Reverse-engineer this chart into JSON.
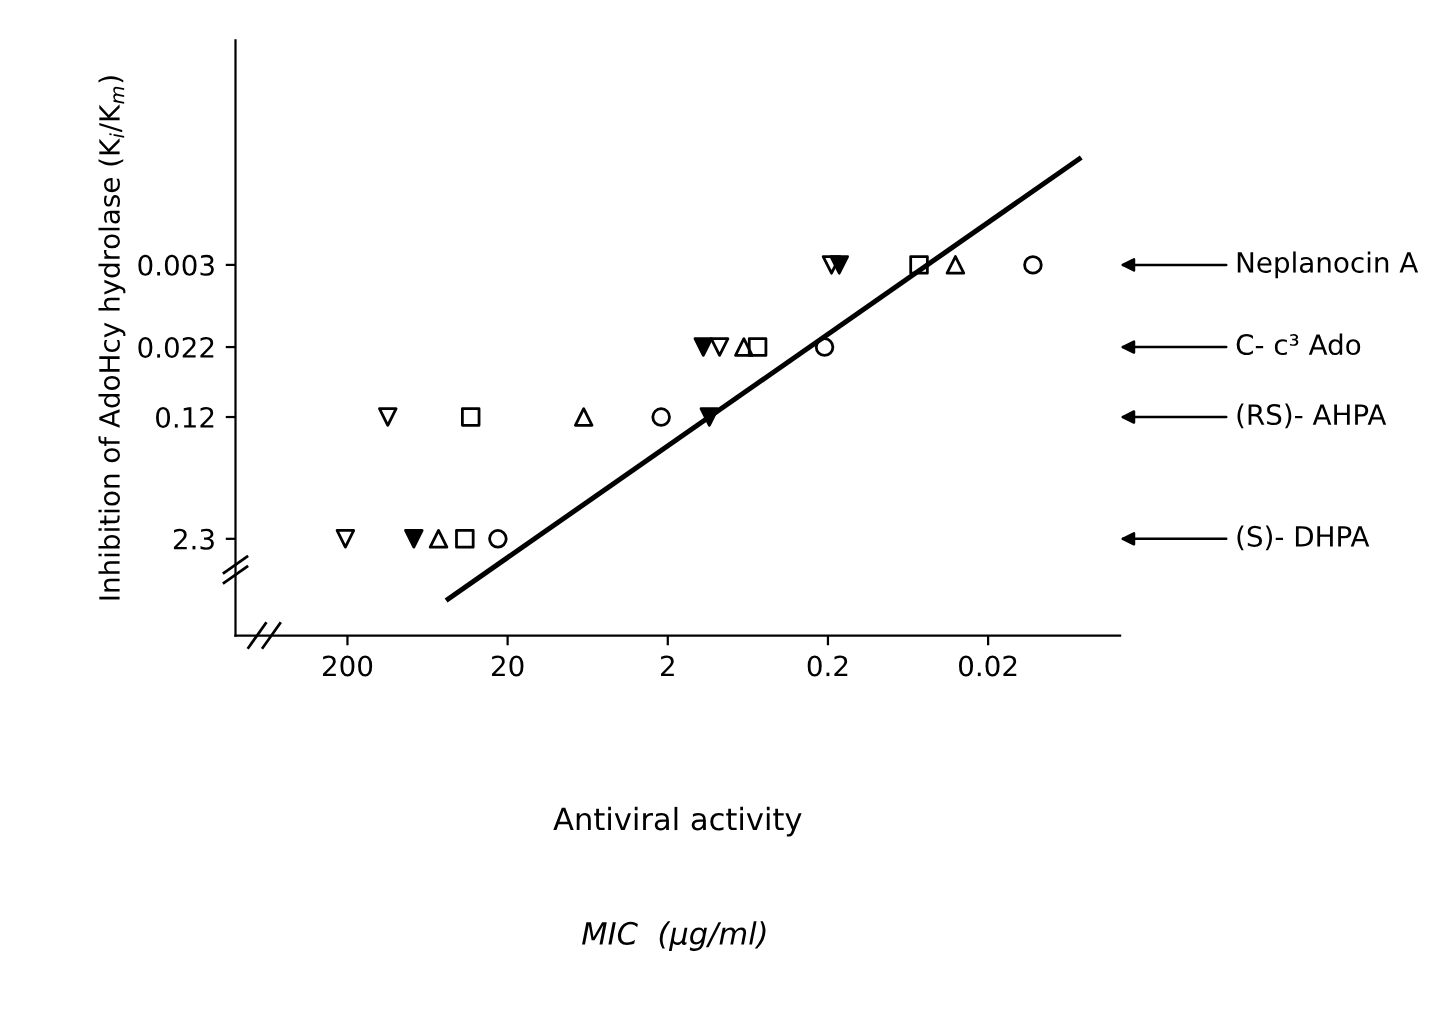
{
  "chart_data": {
    "type": "scatter",
    "xlabel": "Antiviral activity",
    "ylabel": "Inhibition of AdoHcy hydrolase (K$_{i}$/K$_{m}$)",
    "log": "xy",
    "xlim": [
      1000,
      0.003
    ],
    "ylim": [
      24,
      1.3e-05
    ],
    "xticks": [
      200,
      20,
      2,
      0.2,
      0.02
    ],
    "yticks": [
      0.003,
      0.022,
      0.12,
      2.3
    ],
    "grid": false,
    "series": [
      {
        "color": "#000000",
        "marker": "triangle_down",
        "x": [
          0.19,
          0.95,
          112,
          206
        ],
        "values": [
          0.003,
          0.022,
          0.12,
          2.3
        ]
      },
      {
        "color": "#000000",
        "marker": "triangle_down_filled",
        "x": [
          0.17,
          1.2,
          1.1,
          77
        ],
        "values": [
          0.003,
          0.022,
          0.12,
          2.3
        ]
      },
      {
        "color": "#000000",
        "marker": "triangle",
        "x": [
          0.032,
          0.67,
          6.7,
          54
        ],
        "values": [
          0.003,
          0.022,
          0.12,
          2.3
        ]
      },
      {
        "color": "#000000",
        "marker": "square",
        "x": [
          0.054,
          0.55,
          34,
          37
        ],
        "values": [
          0.003,
          0.022,
          0.12,
          2.3
        ]
      },
      {
        "color": "#000000",
        "marker": "circle",
        "x": [
          0.0105,
          0.21,
          2.2,
          23
        ],
        "values": [
          0.003,
          0.022,
          0.12,
          2.3
        ]
      },
      {
        "type": "line",
        "color": "#000000",
        "marker": "none",
        "x": [
          47,
          0.0054
        ],
        "values": [
          9.9,
          0.00023
        ]
      }
    ],
    "annotations": [
      "Neplanocin A",
      "C- c³ Ado",
      "(RS)- AHPA",
      "(S)- DHPA",
      "MIC  (μg/ml)"
    ]
  }
}
